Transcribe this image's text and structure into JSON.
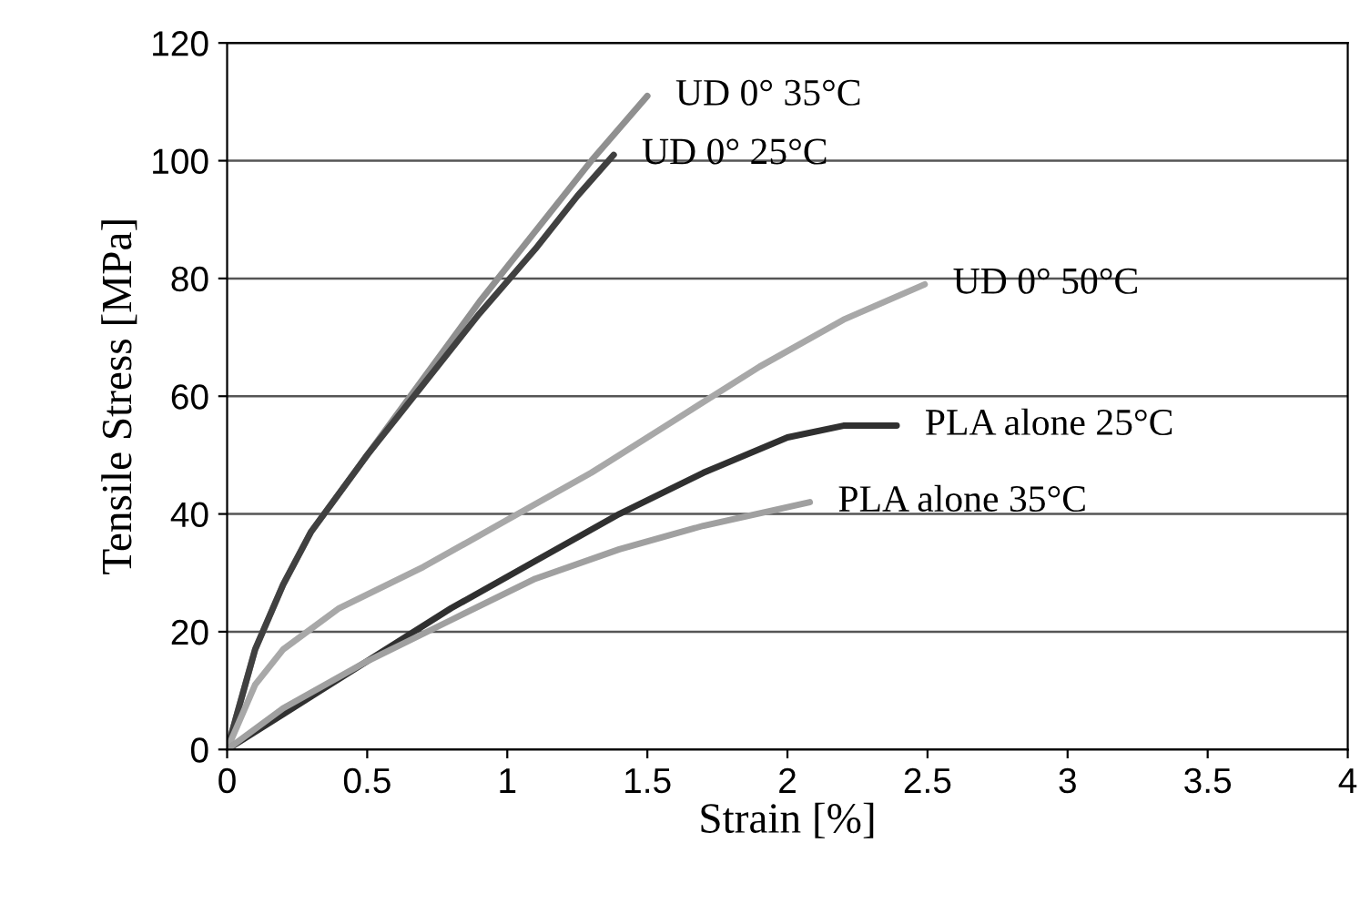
{
  "chart_data": {
    "type": "line",
    "xlabel": "Strain [%]",
    "ylabel": "Tensile Stress [MPa]",
    "xlim": [
      0,
      4
    ],
    "xticks": [
      0,
      0.5,
      1,
      1.5,
      2,
      2.5,
      3,
      3.5,
      4
    ],
    "ylim": [
      0,
      120
    ],
    "yticks": [
      0,
      20,
      40,
      60,
      80,
      100,
      120
    ],
    "grid": "y",
    "legend": false,
    "marker": "none",
    "line_style": "solid",
    "series": [
      {
        "name": "UD 0° 35°C",
        "color": "#909090",
        "x": [
          0,
          0.1,
          0.2,
          0.3,
          0.5,
          0.7,
          0.9,
          1.1,
          1.3,
          1.5
        ],
        "values": [
          0,
          17,
          28,
          37,
          50,
          63,
          76,
          88,
          100,
          111
        ]
      },
      {
        "name": "UD 0° 25°C",
        "color": "#404040",
        "x": [
          0,
          0.1,
          0.2,
          0.3,
          0.5,
          0.7,
          0.9,
          1.1,
          1.25,
          1.38
        ],
        "values": [
          0,
          17,
          28,
          37,
          50,
          62,
          74,
          85,
          94,
          101
        ]
      },
      {
        "name": "UD 0° 50°C",
        "color": "#a8a8a8",
        "x": [
          0,
          0.1,
          0.2,
          0.4,
          0.7,
          1.0,
          1.3,
          1.6,
          1.9,
          2.2,
          2.49
        ],
        "values": [
          0,
          11,
          17,
          24,
          31,
          39,
          47,
          56,
          65,
          73,
          79
        ]
      },
      {
        "name": "PLA alone 25°C",
        "color": "#303030",
        "x": [
          0,
          0.2,
          0.5,
          0.8,
          1.1,
          1.4,
          1.7,
          2.0,
          2.2,
          2.39
        ],
        "values": [
          0,
          6,
          15,
          24,
          32,
          40,
          47,
          53,
          55,
          55
        ]
      },
      {
        "name": "PLA alone 35°C",
        "color": "#a0a0a0",
        "x": [
          0,
          0.2,
          0.5,
          0.8,
          1.1,
          1.4,
          1.7,
          2.08
        ],
        "values": [
          0,
          7,
          15,
          22,
          29,
          34,
          38,
          42
        ]
      }
    ]
  }
}
